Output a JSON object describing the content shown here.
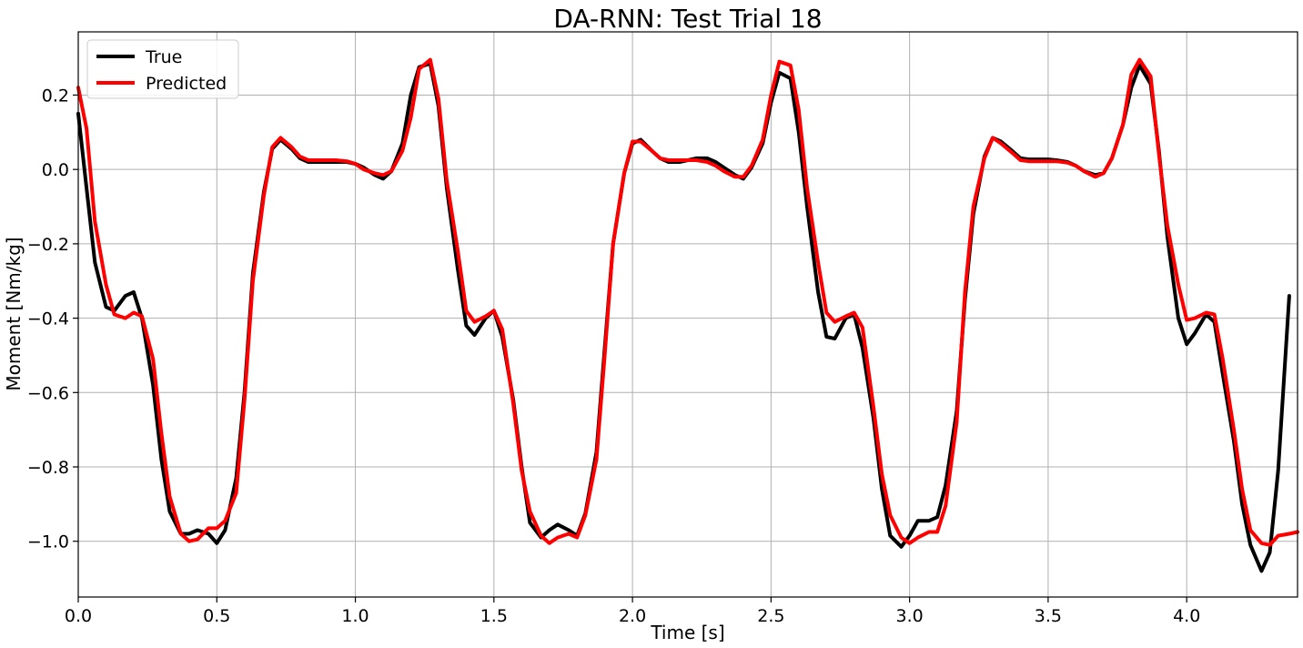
{
  "chart_data": {
    "type": "line",
    "title": "DA-RNN: Test Trial 18",
    "xlabel": "Time [s]",
    "ylabel": "Moment [Nm/kg]",
    "xlim": [
      0.0,
      4.4
    ],
    "ylim": [
      -1.15,
      0.37
    ],
    "xticks": [
      0.0,
      0.5,
      1.0,
      1.5,
      2.0,
      2.5,
      3.0,
      3.5,
      4.0
    ],
    "xtick_labels": [
      "0.0",
      "0.5",
      "1.0",
      "1.5",
      "2.0",
      "2.5",
      "3.0",
      "3.5",
      "4.0"
    ],
    "yticks": [
      0.2,
      0.0,
      -0.2,
      -0.4,
      -0.6,
      -0.8,
      -1.0
    ],
    "ytick_labels": [
      "0.2",
      "0.0",
      "−0.2",
      "−0.4",
      "−0.6",
      "−0.8",
      "−1.0"
    ],
    "grid": true,
    "legend_position": "top-left",
    "series": [
      {
        "name": "True",
        "color": "#000000",
        "points": [
          [
            0.0,
            0.15
          ],
          [
            0.03,
            -0.05
          ],
          [
            0.06,
            -0.25
          ],
          [
            0.1,
            -0.37
          ],
          [
            0.13,
            -0.38
          ],
          [
            0.17,
            -0.34
          ],
          [
            0.2,
            -0.33
          ],
          [
            0.23,
            -0.4
          ],
          [
            0.27,
            -0.58
          ],
          [
            0.3,
            -0.78
          ],
          [
            0.33,
            -0.92
          ],
          [
            0.37,
            -0.98
          ],
          [
            0.4,
            -0.98
          ],
          [
            0.43,
            -0.97
          ],
          [
            0.47,
            -0.98
          ],
          [
            0.5,
            -1.005
          ],
          [
            0.53,
            -0.97
          ],
          [
            0.57,
            -0.83
          ],
          [
            0.6,
            -0.6
          ],
          [
            0.63,
            -0.28
          ],
          [
            0.67,
            -0.06
          ],
          [
            0.7,
            0.055
          ],
          [
            0.73,
            0.08
          ],
          [
            0.77,
            0.055
          ],
          [
            0.8,
            0.03
          ],
          [
            0.83,
            0.02
          ],
          [
            0.87,
            0.02
          ],
          [
            0.9,
            0.02
          ],
          [
            0.93,
            0.02
          ],
          [
            0.97,
            0.02
          ],
          [
            1.0,
            0.015
          ],
          [
            1.03,
            0.005
          ],
          [
            1.07,
            -0.015
          ],
          [
            1.1,
            -0.025
          ],
          [
            1.13,
            -0.005
          ],
          [
            1.17,
            0.07
          ],
          [
            1.2,
            0.2
          ],
          [
            1.23,
            0.275
          ],
          [
            1.27,
            0.285
          ],
          [
            1.3,
            0.17
          ],
          [
            1.33,
            -0.05
          ],
          [
            1.37,
            -0.27
          ],
          [
            1.4,
            -0.42
          ],
          [
            1.43,
            -0.445
          ],
          [
            1.47,
            -0.4
          ],
          [
            1.5,
            -0.38
          ],
          [
            1.53,
            -0.45
          ],
          [
            1.57,
            -0.62
          ],
          [
            1.6,
            -0.8
          ],
          [
            1.63,
            -0.95
          ],
          [
            1.67,
            -0.99
          ],
          [
            1.7,
            -0.97
          ],
          [
            1.73,
            -0.955
          ],
          [
            1.77,
            -0.97
          ],
          [
            1.8,
            -0.985
          ],
          [
            1.83,
            -0.925
          ],
          [
            1.87,
            -0.76
          ],
          [
            1.9,
            -0.48
          ],
          [
            1.93,
            -0.2
          ],
          [
            1.97,
            -0.01
          ],
          [
            2.0,
            0.07
          ],
          [
            2.03,
            0.08
          ],
          [
            2.07,
            0.05
          ],
          [
            2.1,
            0.03
          ],
          [
            2.13,
            0.02
          ],
          [
            2.17,
            0.02
          ],
          [
            2.2,
            0.025
          ],
          [
            2.23,
            0.03
          ],
          [
            2.27,
            0.03
          ],
          [
            2.3,
            0.02
          ],
          [
            2.33,
            0.005
          ],
          [
            2.37,
            -0.015
          ],
          [
            2.4,
            -0.025
          ],
          [
            2.43,
            0.005
          ],
          [
            2.47,
            0.07
          ],
          [
            2.5,
            0.18
          ],
          [
            2.53,
            0.26
          ],
          [
            2.57,
            0.245
          ],
          [
            2.6,
            0.1
          ],
          [
            2.63,
            -0.1
          ],
          [
            2.67,
            -0.33
          ],
          [
            2.7,
            -0.45
          ],
          [
            2.73,
            -0.455
          ],
          [
            2.77,
            -0.4
          ],
          [
            2.8,
            -0.39
          ],
          [
            2.83,
            -0.48
          ],
          [
            2.87,
            -0.67
          ],
          [
            2.9,
            -0.86
          ],
          [
            2.93,
            -0.985
          ],
          [
            2.97,
            -1.015
          ],
          [
            3.0,
            -0.985
          ],
          [
            3.03,
            -0.945
          ],
          [
            3.07,
            -0.945
          ],
          [
            3.1,
            -0.935
          ],
          [
            3.13,
            -0.85
          ],
          [
            3.17,
            -0.65
          ],
          [
            3.2,
            -0.35
          ],
          [
            3.23,
            -0.12
          ],
          [
            3.27,
            0.035
          ],
          [
            3.3,
            0.085
          ],
          [
            3.33,
            0.075
          ],
          [
            3.37,
            0.05
          ],
          [
            3.4,
            0.03
          ],
          [
            3.43,
            0.027
          ],
          [
            3.47,
            0.027
          ],
          [
            3.5,
            0.027
          ],
          [
            3.53,
            0.025
          ],
          [
            3.57,
            0.02
          ],
          [
            3.6,
            0.01
          ],
          [
            3.63,
            -0.005
          ],
          [
            3.67,
            -0.015
          ],
          [
            3.7,
            -0.01
          ],
          [
            3.73,
            0.03
          ],
          [
            3.77,
            0.12
          ],
          [
            3.8,
            0.22
          ],
          [
            3.83,
            0.28
          ],
          [
            3.87,
            0.23
          ],
          [
            3.9,
            0.05
          ],
          [
            3.93,
            -0.18
          ],
          [
            3.97,
            -0.4
          ],
          [
            4.0,
            -0.47
          ],
          [
            4.03,
            -0.44
          ],
          [
            4.07,
            -0.39
          ],
          [
            4.1,
            -0.41
          ],
          [
            4.13,
            -0.55
          ],
          [
            4.17,
            -0.73
          ],
          [
            4.2,
            -0.9
          ],
          [
            4.23,
            -1.01
          ],
          [
            4.27,
            -1.08
          ],
          [
            4.3,
            -1.03
          ],
          [
            4.33,
            -0.81
          ],
          [
            4.37,
            -0.34
          ]
        ]
      },
      {
        "name": "Predicted",
        "color": "#ff0000",
        "points": [
          [
            0.0,
            0.22
          ],
          [
            0.03,
            0.11
          ],
          [
            0.06,
            -0.14
          ],
          [
            0.1,
            -0.31
          ],
          [
            0.13,
            -0.39
          ],
          [
            0.17,
            -0.4
          ],
          [
            0.2,
            -0.385
          ],
          [
            0.23,
            -0.395
          ],
          [
            0.27,
            -0.51
          ],
          [
            0.3,
            -0.71
          ],
          [
            0.33,
            -0.88
          ],
          [
            0.37,
            -0.98
          ],
          [
            0.4,
            -1.0
          ],
          [
            0.43,
            -0.995
          ],
          [
            0.47,
            -0.965
          ],
          [
            0.5,
            -0.965
          ],
          [
            0.53,
            -0.945
          ],
          [
            0.57,
            -0.87
          ],
          [
            0.6,
            -0.62
          ],
          [
            0.63,
            -0.3
          ],
          [
            0.67,
            -0.07
          ],
          [
            0.7,
            0.06
          ],
          [
            0.73,
            0.085
          ],
          [
            0.77,
            0.06
          ],
          [
            0.8,
            0.035
          ],
          [
            0.83,
            0.025
          ],
          [
            0.87,
            0.025
          ],
          [
            0.9,
            0.025
          ],
          [
            0.93,
            0.025
          ],
          [
            0.97,
            0.022
          ],
          [
            1.0,
            0.015
          ],
          [
            1.03,
            0.0
          ],
          [
            1.07,
            -0.01
          ],
          [
            1.1,
            -0.015
          ],
          [
            1.13,
            -0.005
          ],
          [
            1.17,
            0.05
          ],
          [
            1.2,
            0.14
          ],
          [
            1.23,
            0.27
          ],
          [
            1.27,
            0.295
          ],
          [
            1.3,
            0.19
          ],
          [
            1.33,
            -0.03
          ],
          [
            1.37,
            -0.22
          ],
          [
            1.4,
            -0.38
          ],
          [
            1.43,
            -0.41
          ],
          [
            1.47,
            -0.395
          ],
          [
            1.5,
            -0.38
          ],
          [
            1.53,
            -0.43
          ],
          [
            1.57,
            -0.63
          ],
          [
            1.6,
            -0.81
          ],
          [
            1.63,
            -0.92
          ],
          [
            1.67,
            -0.985
          ],
          [
            1.7,
            -1.005
          ],
          [
            1.73,
            -0.99
          ],
          [
            1.77,
            -0.98
          ],
          [
            1.8,
            -0.99
          ],
          [
            1.83,
            -0.93
          ],
          [
            1.87,
            -0.78
          ],
          [
            1.9,
            -0.5
          ],
          [
            1.93,
            -0.2
          ],
          [
            1.97,
            -0.01
          ],
          [
            2.0,
            0.075
          ],
          [
            2.03,
            0.075
          ],
          [
            2.07,
            0.05
          ],
          [
            2.1,
            0.03
          ],
          [
            2.13,
            0.025
          ],
          [
            2.17,
            0.025
          ],
          [
            2.2,
            0.025
          ],
          [
            2.23,
            0.025
          ],
          [
            2.27,
            0.02
          ],
          [
            2.3,
            0.01
          ],
          [
            2.33,
            -0.005
          ],
          [
            2.37,
            -0.02
          ],
          [
            2.4,
            -0.02
          ],
          [
            2.43,
            0.01
          ],
          [
            2.47,
            0.08
          ],
          [
            2.5,
            0.2
          ],
          [
            2.53,
            0.29
          ],
          [
            2.57,
            0.28
          ],
          [
            2.6,
            0.16
          ],
          [
            2.63,
            -0.05
          ],
          [
            2.67,
            -0.25
          ],
          [
            2.7,
            -0.385
          ],
          [
            2.73,
            -0.41
          ],
          [
            2.77,
            -0.395
          ],
          [
            2.8,
            -0.385
          ],
          [
            2.83,
            -0.425
          ],
          [
            2.87,
            -0.64
          ],
          [
            2.9,
            -0.82
          ],
          [
            2.93,
            -0.93
          ],
          [
            2.97,
            -0.99
          ],
          [
            3.0,
            -1.005
          ],
          [
            3.03,
            -0.99
          ],
          [
            3.07,
            -0.975
          ],
          [
            3.1,
            -0.975
          ],
          [
            3.13,
            -0.905
          ],
          [
            3.17,
            -0.68
          ],
          [
            3.2,
            -0.33
          ],
          [
            3.23,
            -0.1
          ],
          [
            3.27,
            0.03
          ],
          [
            3.3,
            0.085
          ],
          [
            3.33,
            0.07
          ],
          [
            3.37,
            0.045
          ],
          [
            3.4,
            0.025
          ],
          [
            3.43,
            0.022
          ],
          [
            3.47,
            0.022
          ],
          [
            3.5,
            0.022
          ],
          [
            3.53,
            0.022
          ],
          [
            3.57,
            0.018
          ],
          [
            3.6,
            0.01
          ],
          [
            3.63,
            -0.005
          ],
          [
            3.67,
            -0.02
          ],
          [
            3.7,
            -0.01
          ],
          [
            3.73,
            0.03
          ],
          [
            3.77,
            0.12
          ],
          [
            3.8,
            0.255
          ],
          [
            3.83,
            0.295
          ],
          [
            3.87,
            0.25
          ],
          [
            3.9,
            0.04
          ],
          [
            3.93,
            -0.15
          ],
          [
            3.97,
            -0.31
          ],
          [
            4.0,
            -0.405
          ],
          [
            4.03,
            -0.4
          ],
          [
            4.07,
            -0.385
          ],
          [
            4.1,
            -0.39
          ],
          [
            4.13,
            -0.51
          ],
          [
            4.17,
            -0.7
          ],
          [
            4.2,
            -0.86
          ],
          [
            4.23,
            -0.97
          ],
          [
            4.27,
            -1.005
          ],
          [
            4.3,
            -1.01
          ],
          [
            4.33,
            -0.985
          ],
          [
            4.37,
            -0.98
          ],
          [
            4.4,
            -0.975
          ]
        ]
      }
    ]
  }
}
